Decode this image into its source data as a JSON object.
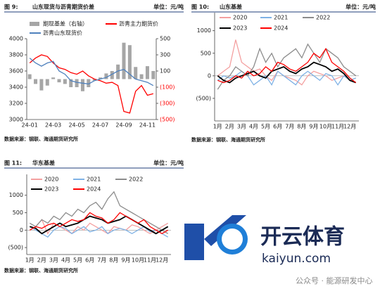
{
  "chart_data": [
    {
      "type": "combo",
      "figure": "图 9:",
      "title": "山东现货与沥青期货价差",
      "unit": "单位：元/吨",
      "source": "数据来源：钢联、海通期货研究所",
      "categories": [
        "24-01",
        null,
        null,
        null,
        "24-03",
        null,
        null,
        null,
        "24-05",
        null,
        null,
        null,
        "24-07",
        null,
        null,
        null,
        "24-09",
        null,
        null,
        null,
        "24-11",
        null
      ],
      "ylim": [
        3000,
        4000
      ],
      "yticks": [
        3000,
        3200,
        3400,
        3600,
        3800,
        4000
      ],
      "y2lim": [
        -500,
        500
      ],
      "y2ticks": [
        {
          "value": -500,
          "label": "(500)"
        },
        {
          "value": -300,
          "label": "(300)"
        },
        {
          "value": -100,
          "label": "(100)"
        },
        100,
        300,
        500
      ],
      "series": [
        {
          "name": "期现基差（右轴）",
          "kind": "bar",
          "axis": "y2",
          "color": "#a6a6a6",
          "values": [
            60,
            -60,
            -140,
            -80,
            20,
            -40,
            -60,
            -100,
            -100,
            -150,
            -100,
            -20,
            20,
            70,
            100,
            180,
            450,
            420,
            150,
            60,
            160,
            100
          ]
        },
        {
          "name": "沥青主力期货价",
          "kind": "line",
          "color": "#ff0000",
          "values": [
            3700,
            3760,
            3800,
            3780,
            3700,
            3640,
            3620,
            3580,
            3560,
            3600,
            3540,
            3500,
            3480,
            3450,
            3460,
            3420,
            3100,
            3080,
            3350,
            3420,
            3300,
            3320
          ]
        },
        {
          "name": "沥青山东现货价",
          "kind": "line",
          "color": "#4f81bd",
          "values": [
            3760,
            3700,
            3660,
            3700,
            3720,
            3600,
            3560,
            3480,
            3460,
            3450,
            3440,
            3480,
            3500,
            3520,
            3560,
            3600,
            3620,
            3560,
            3500,
            3480,
            3460,
            3420
          ]
        }
      ]
    },
    {
      "type": "line",
      "figure": "图 10:",
      "title": "山东基差",
      "unit": "单位：元/吨",
      "source": "数据来源：钢联、海通期货研究所",
      "categories": [
        "1月",
        null,
        "2月",
        null,
        "3月",
        null,
        "4月",
        null,
        "5月",
        null,
        "6月",
        null,
        "7月",
        null,
        "8月",
        null,
        "9月",
        null,
        "10月",
        null,
        "11月",
        null,
        "12月",
        null
      ],
      "ylim": [
        -1000,
        1400
      ],
      "yticks": [
        {
          "value": -500,
          "label": "(500)"
        },
        0,
        500,
        1000
      ],
      "series": [
        {
          "name": "2020",
          "color": "#f4a0a0",
          "values": [
            0,
            100,
            200,
            800,
            300,
            200,
            100,
            150,
            0,
            -100,
            100,
            0,
            -50,
            -100,
            -200,
            0,
            100,
            50,
            0,
            -100,
            -50,
            0,
            -100,
            -50
          ]
        },
        {
          "name": "2021",
          "color": "#7fb2e5",
          "values": [
            -100,
            0,
            -50,
            0,
            100,
            0,
            -200,
            -100,
            0,
            -200,
            100,
            0,
            -100,
            -200,
            0,
            100,
            0,
            -100,
            50,
            0,
            -200,
            0,
            -100,
            -50
          ]
        },
        {
          "name": "2022",
          "color": "#8c8c8c",
          "values": [
            -300,
            -100,
            0,
            200,
            100,
            0,
            200,
            600,
            300,
            500,
            200,
            400,
            500,
            600,
            400,
            700,
            500,
            300,
            600,
            500,
            400,
            200,
            100,
            0
          ]
        },
        {
          "name": "2023",
          "color": "#000000",
          "values": [
            0,
            -100,
            -150,
            -50,
            0,
            50,
            100,
            0,
            -50,
            100,
            150,
            200,
            100,
            50,
            150,
            200,
            300,
            250,
            200,
            100,
            150,
            50,
            -100,
            -150
          ]
        },
        {
          "name": "2024",
          "color": "#ff0000",
          "values": [
            -100,
            -150,
            -100,
            0,
            -50,
            100,
            0,
            50,
            200,
            100,
            300,
            250,
            150,
            100,
            200,
            300,
            500,
            400,
            600,
            300,
            200,
            100,
            -50,
            -150
          ]
        }
      ]
    },
    {
      "type": "line",
      "figure": "图 11:",
      "title": "华东基差",
      "unit": "单位：元/吨",
      "source": "数据来源：钢联、海通期货研究所",
      "categories": [
        "1月",
        null,
        "2月",
        null,
        "3月",
        null,
        "4月",
        null,
        "5月",
        null,
        "6月",
        null,
        "7月",
        null,
        "8月",
        null,
        "9月",
        null,
        "10月",
        null,
        "11月",
        null,
        "12月",
        null
      ],
      "ylim": [
        -700,
        1600
      ],
      "yticks": [
        {
          "value": -500,
          "label": "(500)"
        },
        0,
        500,
        1000
      ],
      "series": [
        {
          "name": "2020",
          "color": "#f4a0a0",
          "values": [
            0,
            100,
            300,
            -100,
            200,
            100,
            0,
            -100,
            100,
            0,
            200,
            100,
            0,
            -100,
            100,
            50,
            0,
            150,
            100,
            0,
            -100,
            0,
            100,
            200
          ]
        },
        {
          "name": "2021",
          "color": "#7fb2e5",
          "values": [
            100,
            0,
            -100,
            -200,
            0,
            100,
            50,
            -100,
            0,
            100,
            -50,
            0,
            100,
            -100,
            0,
            50,
            0,
            -100,
            0,
            100,
            -50,
            0,
            -100,
            -200
          ]
        },
        {
          "name": "2022",
          "color": "#8c8c8c",
          "values": [
            200,
            100,
            300,
            200,
            400,
            300,
            500,
            400,
            600,
            500,
            700,
            800,
            600,
            900,
            1100,
            700,
            600,
            500,
            400,
            300,
            200,
            100,
            0,
            -100
          ]
        },
        {
          "name": "2023",
          "color": "#000000",
          "values": [
            100,
            50,
            -100,
            0,
            100,
            200,
            100,
            150,
            200,
            300,
            400,
            350,
            300,
            200,
            250,
            300,
            400,
            300,
            200,
            100,
            0,
            -100,
            0,
            100
          ]
        },
        {
          "name": "2024",
          "color": "#ff0000",
          "values": [
            0,
            100,
            50,
            150,
            200,
            100,
            200,
            300,
            250,
            300,
            500,
            400,
            350,
            200,
            300,
            500,
            400,
            300,
            200,
            300,
            100,
            0,
            -100,
            0
          ]
        }
      ]
    }
  ],
  "watermark": {
    "brand": "开云体育",
    "url": "kaiyun.com",
    "account": "公众号 · 能源研发中心"
  }
}
